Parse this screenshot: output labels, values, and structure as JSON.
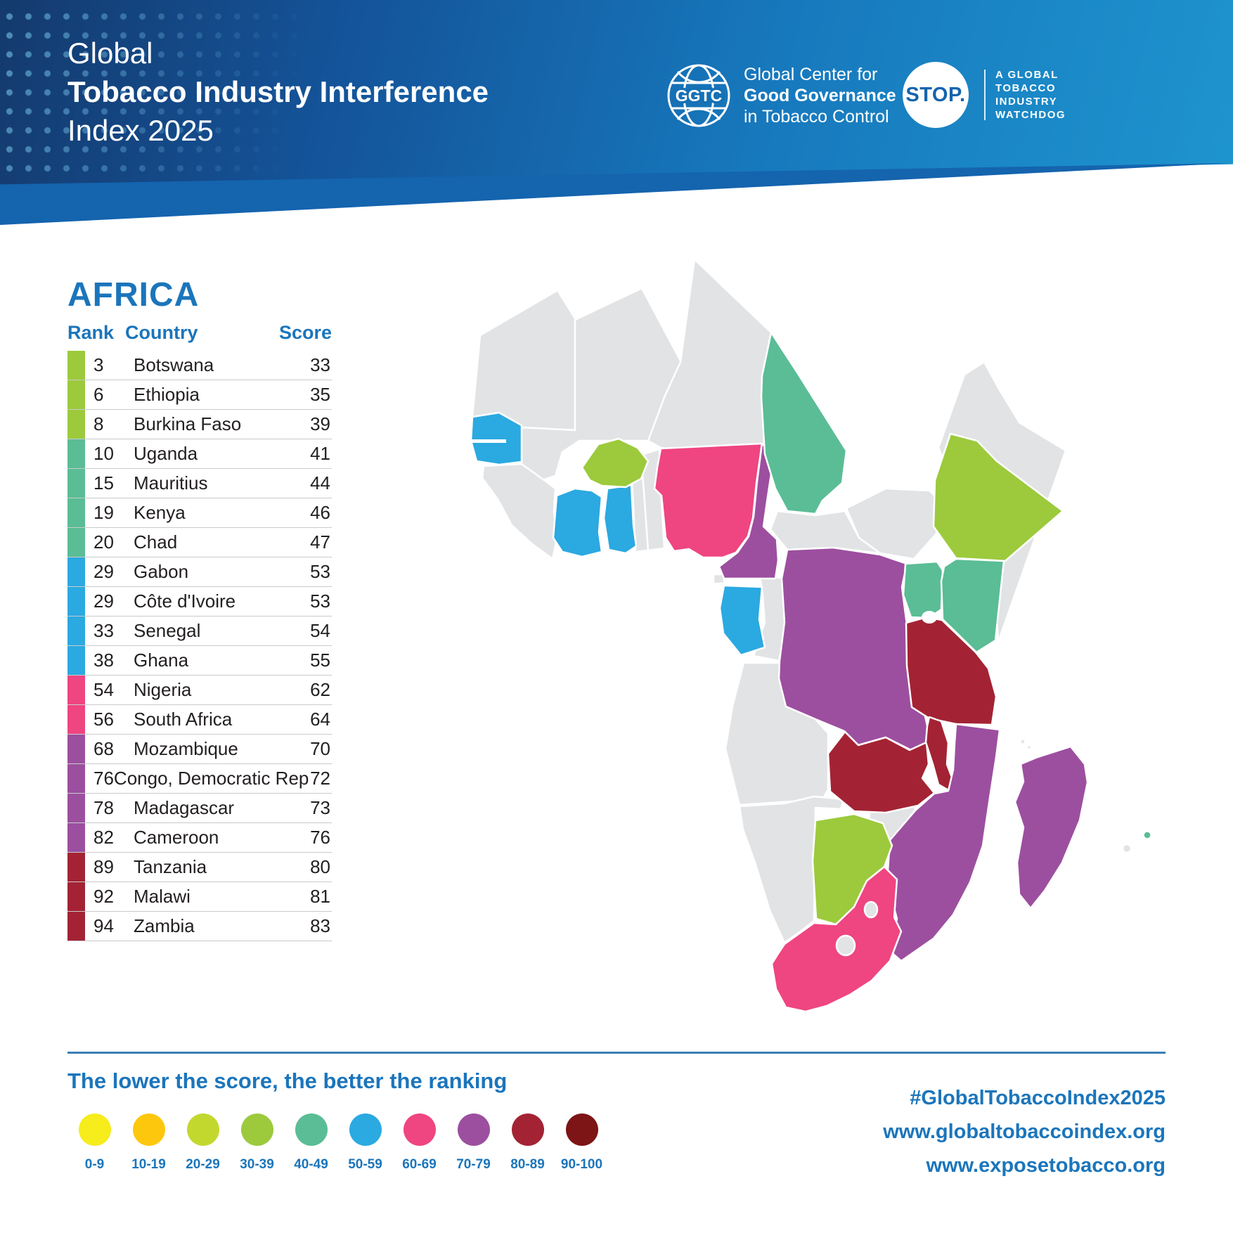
{
  "banner": {
    "title_line1": "Global",
    "title_line2": "Tobacco Industry Interference",
    "title_line3": "Index 2025",
    "ggtc_logo": {
      "abbr": "GGTC",
      "line1": "Global Center for",
      "line2": "Good Governance",
      "line3": "in Tobacco Control"
    },
    "stop_logo": {
      "label": "STOP.",
      "caption_line1": "A GLOBAL",
      "caption_line2": "TOBACCO",
      "caption_line3": "INDUSTRY",
      "caption_line4": "WATCHDOG"
    }
  },
  "region_title": "AFRICA",
  "table": {
    "columns": [
      "Rank",
      "Country",
      "Score"
    ],
    "rows": [
      {
        "rank": "3",
        "country": "Botswana",
        "score": "33",
        "bucket": "30-39"
      },
      {
        "rank": "6",
        "country": "Ethiopia",
        "score": "35",
        "bucket": "30-39"
      },
      {
        "rank": "8",
        "country": "Burkina Faso",
        "score": "39",
        "bucket": "30-39"
      },
      {
        "rank": "10",
        "country": "Uganda",
        "score": "41",
        "bucket": "40-49"
      },
      {
        "rank": "15",
        "country": "Mauritius",
        "score": "44",
        "bucket": "40-49"
      },
      {
        "rank": "19",
        "country": "Kenya",
        "score": "46",
        "bucket": "40-49"
      },
      {
        "rank": "20",
        "country": "Chad",
        "score": "47",
        "bucket": "40-49"
      },
      {
        "rank": "29",
        "country": "Gabon",
        "score": "53",
        "bucket": "50-59"
      },
      {
        "rank": "29",
        "country": "Côte d'Ivoire",
        "score": "53",
        "bucket": "50-59"
      },
      {
        "rank": "33",
        "country": "Senegal",
        "score": "54",
        "bucket": "50-59"
      },
      {
        "rank": "38",
        "country": "Ghana",
        "score": "55",
        "bucket": "50-59"
      },
      {
        "rank": "54",
        "country": "Nigeria",
        "score": "62",
        "bucket": "60-69"
      },
      {
        "rank": "56",
        "country": "South Africa",
        "score": "64",
        "bucket": "60-69"
      },
      {
        "rank": "68",
        "country": "Mozambique",
        "score": "70",
        "bucket": "70-79"
      },
      {
        "rank": "76",
        "country": "Congo, Democratic Rep",
        "score": "72",
        "bucket": "70-79"
      },
      {
        "rank": "78",
        "country": "Madagascar",
        "score": "73",
        "bucket": "70-79"
      },
      {
        "rank": "82",
        "country": "Cameroon",
        "score": "76",
        "bucket": "70-79"
      },
      {
        "rank": "89",
        "country": "Tanzania",
        "score": "80",
        "bucket": "80-89"
      },
      {
        "rank": "92",
        "country": "Malawi",
        "score": "81",
        "bucket": "80-89"
      },
      {
        "rank": "94",
        "country": "Zambia",
        "score": "83",
        "bucket": "80-89"
      }
    ]
  },
  "legend": {
    "note": "The lower the score, the better the ranking",
    "buckets": [
      {
        "label": "0-9",
        "color": "#f7ec1c"
      },
      {
        "label": "10-19",
        "color": "#fdc70d"
      },
      {
        "label": "20-29",
        "color": "#c3d82e"
      },
      {
        "label": "30-39",
        "color": "#9cca3c"
      },
      {
        "label": "40-49",
        "color": "#5abd95"
      },
      {
        "label": "50-59",
        "color": "#2ba9e1"
      },
      {
        "label": "60-69",
        "color": "#ef4581"
      },
      {
        "label": "70-79",
        "color": "#9c4f9f"
      },
      {
        "label": "80-89",
        "color": "#a32334"
      },
      {
        "label": "90-100",
        "color": "#7d1416"
      }
    ]
  },
  "map": {
    "gray_color": "#e2e3e5",
    "scored": {
      "senegal": "50-59",
      "cote-divoire": "50-59",
      "ghana": "50-59",
      "gabon": "50-59",
      "burkina-faso": "30-39",
      "ethiopia": "30-39",
      "botswana": "30-39",
      "uganda": "40-49",
      "kenya": "40-49",
      "chad": "40-49",
      "mauritius": "40-49",
      "nigeria": "60-69",
      "south-africa": "60-69",
      "mozambique": "70-79",
      "congo-democratic-rep": "70-79",
      "madagascar": "70-79",
      "cameroon": "70-79",
      "tanzania": "80-89",
      "malawi": "80-89",
      "zambia": "80-89"
    }
  },
  "chart_data": {
    "type": "table",
    "title": "Global Tobacco Industry Interference Index 2025 — Africa",
    "columns": [
      "Rank",
      "Country",
      "Score"
    ],
    "rows": [
      [
        3,
        "Botswana",
        33
      ],
      [
        6,
        "Ethiopia",
        35
      ],
      [
        8,
        "Burkina Faso",
        39
      ],
      [
        10,
        "Uganda",
        41
      ],
      [
        15,
        "Mauritius",
        44
      ],
      [
        19,
        "Kenya",
        46
      ],
      [
        20,
        "Chad",
        47
      ],
      [
        29,
        "Gabon",
        53
      ],
      [
        29,
        "Côte d'Ivoire",
        53
      ],
      [
        33,
        "Senegal",
        54
      ],
      [
        38,
        "Ghana",
        55
      ],
      [
        54,
        "Nigeria",
        62
      ],
      [
        56,
        "South Africa",
        64
      ],
      [
        68,
        "Mozambique",
        70
      ],
      [
        76,
        "Congo, Democratic Rep",
        72
      ],
      [
        78,
        "Madagascar",
        73
      ],
      [
        82,
        "Cameroon",
        76
      ],
      [
        89,
        "Tanzania",
        80
      ],
      [
        92,
        "Malawi",
        81
      ],
      [
        94,
        "Zambia",
        83
      ]
    ]
  },
  "footer": {
    "hashtag": "#GlobalTobaccoIndex2025",
    "url1": "www.globaltobaccoindex.org",
    "url2": "www.exposetobacco.org"
  }
}
